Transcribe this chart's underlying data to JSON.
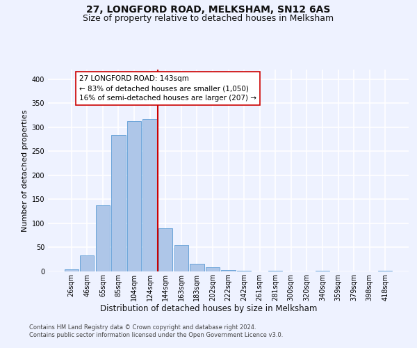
{
  "title": "27, LONGFORD ROAD, MELKSHAM, SN12 6AS",
  "subtitle": "Size of property relative to detached houses in Melksham",
  "xlabel": "Distribution of detached houses by size in Melksham",
  "ylabel": "Number of detached properties",
  "categories": [
    "26sqm",
    "46sqm",
    "65sqm",
    "85sqm",
    "104sqm",
    "124sqm",
    "144sqm",
    "163sqm",
    "183sqm",
    "202sqm",
    "222sqm",
    "242sqm",
    "261sqm",
    "281sqm",
    "300sqm",
    "320sqm",
    "340sqm",
    "359sqm",
    "379sqm",
    "398sqm",
    "418sqm"
  ],
  "values": [
    5,
    33,
    138,
    284,
    313,
    317,
    90,
    55,
    16,
    8,
    3,
    1,
    0,
    1,
    0,
    0,
    1,
    0,
    0,
    0,
    2
  ],
  "bar_color": "#aec6e8",
  "bar_edge_color": "#5b9bd5",
  "vline_color": "#cc0000",
  "annotation_text": "27 LONGFORD ROAD: 143sqm\n← 83% of detached houses are smaller (1,050)\n16% of semi-detached houses are larger (207) →",
  "annotation_box_color": "#ffffff",
  "annotation_box_edge_color": "#cc0000",
  "ylim": [
    0,
    420
  ],
  "yticks": [
    0,
    50,
    100,
    150,
    200,
    250,
    300,
    350,
    400
  ],
  "footer_line1": "Contains HM Land Registry data © Crown copyright and database right 2024.",
  "footer_line2": "Contains public sector information licensed under the Open Government Licence v3.0.",
  "bg_color": "#eef2ff",
  "plot_bg_color": "#eef2ff",
  "grid_color": "#ffffff",
  "title_fontsize": 10,
  "subtitle_fontsize": 9,
  "tick_fontsize": 7,
  "ylabel_fontsize": 8,
  "xlabel_fontsize": 8.5,
  "footer_fontsize": 6,
  "annotation_fontsize": 7.5
}
